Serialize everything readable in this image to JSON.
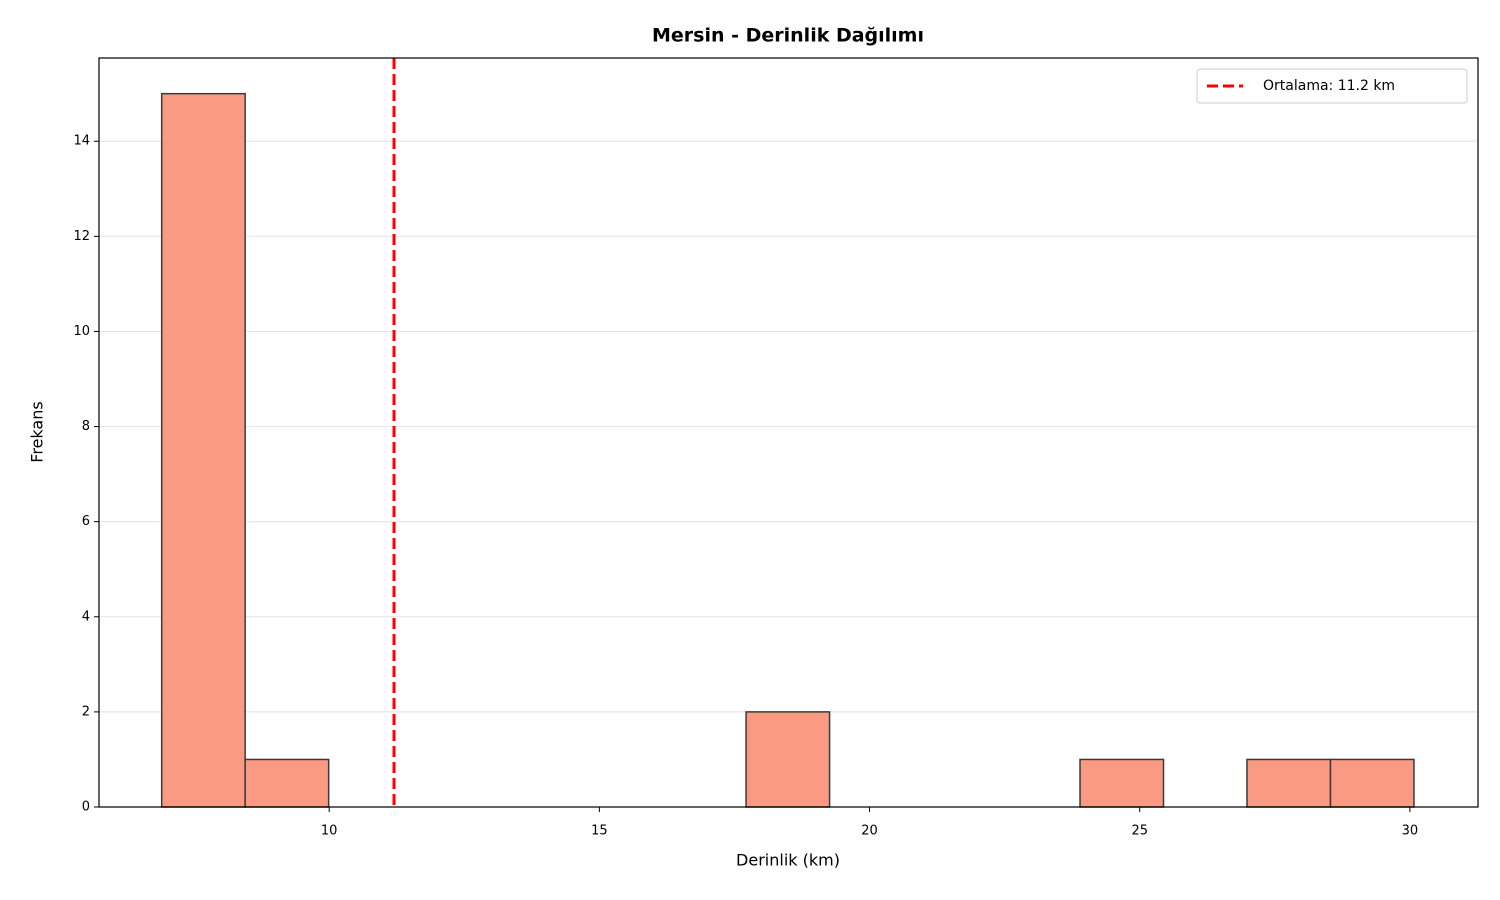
{
  "chart_data": {
    "type": "histogram",
    "title": "Mersin - Derinlik Dağılımı",
    "x_label": "Derinlik (km)",
    "y_label": "Frekans",
    "bins": [
      6.9,
      8.445,
      9.99,
      11.535,
      13.08,
      14.625,
      16.17,
      17.715,
      19.26,
      20.805,
      22.35,
      23.895,
      25.44,
      26.985,
      28.53,
      30.075
    ],
    "counts": [
      15,
      1,
      0,
      0,
      0,
      0,
      0,
      2,
      0,
      0,
      0,
      1,
      0,
      1,
      1
    ],
    "color": "#fa9a82",
    "edge_color": "#3a3a3a",
    "xlim": [
      5.74,
      31.26
    ],
    "xticks": [
      10,
      15,
      20,
      25,
      30
    ],
    "ylim": [
      0,
      15.75
    ],
    "yticks": [
      0,
      2,
      4,
      6,
      8,
      10,
      12,
      14
    ],
    "grid": true,
    "legend": "upper right",
    "mean_line": {
      "value": 11.2,
      "label": "Ortalama: 11.2 km",
      "color": "#ff0000"
    }
  }
}
